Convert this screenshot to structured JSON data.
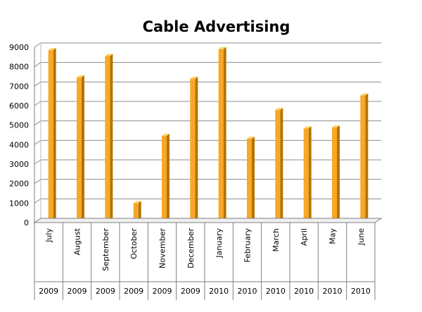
{
  "chart_data": {
    "type": "bar",
    "title": "Cable Advertising",
    "xlabel": "",
    "ylabel": "",
    "ylim": [
      0,
      9000
    ],
    "yticks": [
      0,
      1000,
      2000,
      3000,
      4000,
      5000,
      6000,
      7000,
      8000,
      9000
    ],
    "grid": true,
    "legend": "none",
    "categories": [
      {
        "month": "July",
        "year": "2009"
      },
      {
        "month": "August",
        "year": "2009"
      },
      {
        "month": "September",
        "year": "2009"
      },
      {
        "month": "October",
        "year": "2009"
      },
      {
        "month": "November",
        "year": "2009"
      },
      {
        "month": "December",
        "year": "2009"
      },
      {
        "month": "January",
        "year": "2010"
      },
      {
        "month": "February",
        "year": "2010"
      },
      {
        "month": "March",
        "year": "2010"
      },
      {
        "month": "April",
        "year": "2010"
      },
      {
        "month": "May",
        "year": "2010"
      },
      {
        "month": "June",
        "year": "2010"
      }
    ],
    "values": [
      8850,
      7450,
      8550,
      1000,
      4450,
      7380,
      8900,
      4300,
      5780,
      4830,
      4880,
      6520
    ],
    "colors": {
      "bar_front": "#F9A825",
      "bar_side": "#B27400",
      "bar_top": "#FFD36B",
      "grid": "#8C8C8C"
    }
  }
}
